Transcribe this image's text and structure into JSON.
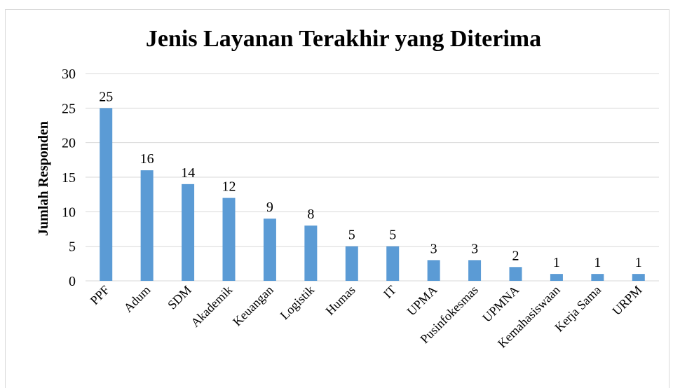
{
  "chart_data": {
    "type": "bar",
    "title": "Jenis Layanan Terakhir yang Diterima",
    "y_label": "Jumlah Responden",
    "categories": [
      "PPF",
      "Adum",
      "SDM",
      "Akademik",
      "Keuangan",
      "Logistik",
      "Humas",
      "IT",
      "UPMA",
      "Pusinfokesmas",
      "UPMNA",
      "Kemahasiswaan",
      "Kerja Sama",
      "URPM"
    ],
    "values": [
      25,
      16,
      14,
      12,
      9,
      8,
      5,
      5,
      3,
      3,
      2,
      1,
      1,
      1
    ],
    "color": "#5b9bd5",
    "ylim": [
      0,
      30
    ],
    "yticks": [
      0,
      5,
      10,
      15,
      20,
      25,
      30
    ],
    "grid": true
  }
}
